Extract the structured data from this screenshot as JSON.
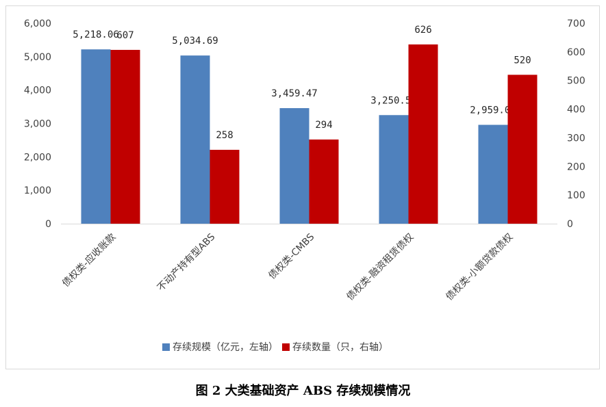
{
  "caption": "图 2    大类基础资产 ABS 存续规模情况",
  "chart_data": {
    "type": "bar",
    "categories": [
      "债权类-应收账款",
      "不动产持有型ABS",
      "债权类-CMBS",
      "债权类-融资租赁债权",
      "债权类-小额贷款债权"
    ],
    "series": [
      {
        "name": "存续规模（亿元，左轴）",
        "axis": "left",
        "color": "#4f81bd",
        "values": [
          5218.06,
          5034.69,
          3459.47,
          3250.57,
          2959.03
        ],
        "labels": [
          "5,218.06",
          "5,034.69",
          "3,459.47",
          "3,250.57",
          "2,959.03"
        ]
      },
      {
        "name": "存续数量（只，右轴）",
        "axis": "right",
        "color": "#c00000",
        "values": [
          607,
          258,
          294,
          626,
          520
        ],
        "labels": [
          "607",
          "258",
          "294",
          "626",
          "520"
        ]
      }
    ],
    "y_left": {
      "min": 0,
      "max": 6000,
      "ticks": [
        "0",
        "1,000",
        "2,000",
        "3,000",
        "4,000",
        "5,000",
        "6,000"
      ]
    },
    "y_right": {
      "min": 0,
      "max": 700,
      "ticks": [
        "0",
        "100",
        "200",
        "300",
        "400",
        "500",
        "600",
        "700"
      ]
    },
    "legend_position": "bottom",
    "grid": false
  }
}
